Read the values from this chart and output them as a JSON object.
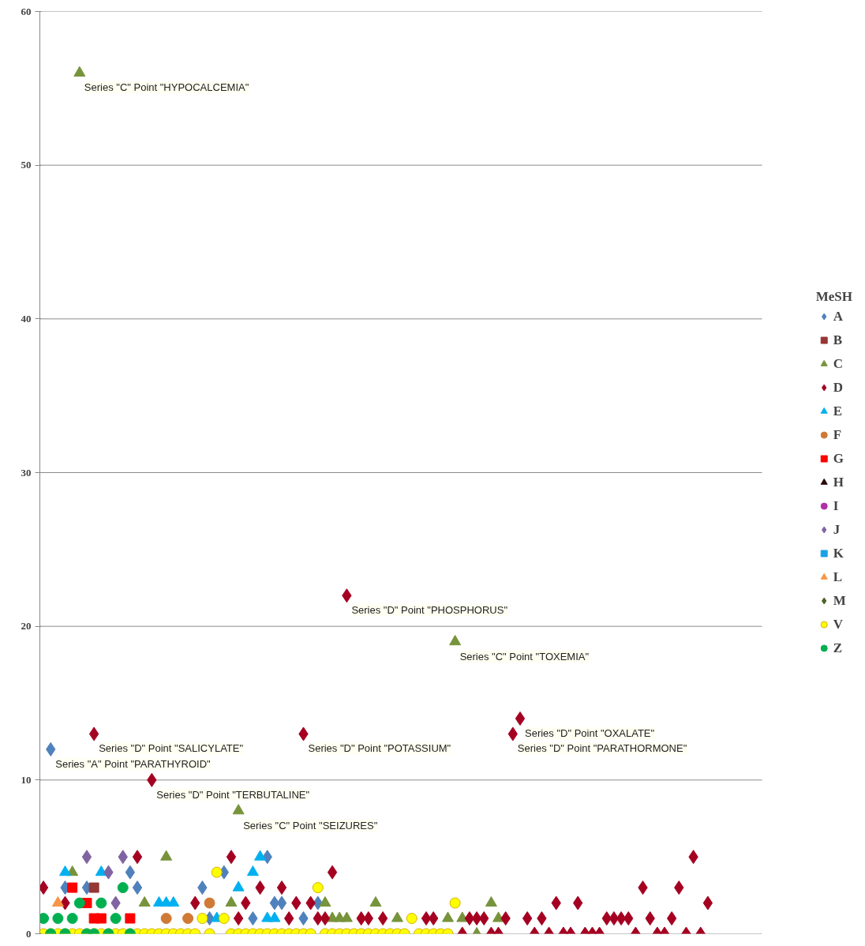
{
  "chart_data": {
    "type": "scatter",
    "legend_title": "MeSH",
    "legend": "right",
    "grid": "y",
    "tick_labels": "y",
    "ylim": [
      0,
      60
    ],
    "yticks": [
      0,
      10,
      20,
      30,
      40,
      50,
      60
    ],
    "categories": [
      null,
      null,
      null,
      null,
      null,
      null,
      null,
      null,
      null,
      null,
      null,
      null,
      null,
      null,
      null,
      null,
      null,
      null,
      null,
      null,
      null,
      null,
      null,
      null,
      null,
      null,
      null,
      null,
      null,
      null,
      null,
      null,
      null,
      null,
      null,
      null,
      null,
      null,
      null,
      null,
      null,
      null,
      null,
      null,
      null,
      null,
      null,
      null,
      null,
      null,
      null,
      null,
      null,
      null,
      null,
      null,
      null,
      null,
      null,
      null,
      null,
      null,
      null,
      null,
      null,
      null,
      null,
      null,
      null,
      null,
      null,
      null,
      null,
      null,
      null,
      null,
      null,
      null,
      null,
      null,
      null,
      null,
      null,
      null,
      null,
      null,
      null,
      null,
      null,
      null,
      null,
      null,
      null,
      null,
      null,
      null,
      null,
      null,
      null,
      null
    ],
    "series": [
      {
        "name": "A",
        "color": "#4f81bd",
        "marker": "diamond",
        "values": [
          null,
          12,
          null,
          3,
          null,
          null,
          3,
          null,
          null,
          null,
          null,
          null,
          4,
          3,
          null,
          null,
          null,
          null,
          null,
          null,
          null,
          null,
          3,
          1,
          null,
          4,
          null,
          null,
          null,
          1,
          null,
          5,
          2,
          2,
          null,
          null,
          1,
          null,
          2,
          null,
          null,
          null,
          null,
          null,
          null,
          null,
          null,
          null,
          null,
          null,
          null,
          null,
          null,
          null,
          null,
          null,
          null,
          null,
          null,
          null,
          null,
          null,
          null,
          null,
          null,
          null,
          null,
          null,
          null,
          null,
          null,
          null,
          null,
          null,
          null,
          null,
          null,
          null,
          null,
          null,
          null,
          null,
          null,
          null,
          null,
          null,
          null,
          null,
          null,
          null,
          null,
          null,
          null,
          null,
          null,
          null,
          null,
          null,
          null,
          null
        ]
      },
      {
        "name": "B",
        "color": "#953735",
        "marker": "square",
        "values": [
          null,
          null,
          null,
          null,
          null,
          null,
          null,
          3,
          null,
          null,
          null,
          null,
          null,
          null,
          null,
          null,
          null,
          null,
          null,
          null,
          null,
          null,
          null,
          null,
          null,
          null,
          null,
          null,
          null,
          null,
          null,
          null,
          null,
          null,
          null,
          null,
          null,
          null,
          null,
          null,
          null,
          null,
          null,
          null,
          null,
          null,
          null,
          null,
          null,
          null,
          null,
          null,
          null,
          null,
          null,
          null,
          null,
          null,
          null,
          null,
          null,
          null,
          null,
          null,
          null,
          null,
          null,
          null,
          null,
          null,
          null,
          null,
          null,
          null,
          null,
          null,
          null,
          null,
          null,
          null,
          null,
          null,
          null,
          null,
          null,
          null,
          null,
          null,
          null,
          null,
          null,
          null,
          null,
          null,
          null,
          null,
          null,
          null,
          null,
          null
        ]
      },
      {
        "name": "C",
        "color": "#77933c",
        "marker": "triangle",
        "values": [
          null,
          null,
          null,
          null,
          4,
          56,
          null,
          null,
          null,
          null,
          null,
          null,
          null,
          null,
          2,
          null,
          null,
          5,
          null,
          null,
          null,
          null,
          null,
          null,
          null,
          null,
          2,
          8,
          null,
          null,
          null,
          null,
          null,
          null,
          null,
          null,
          null,
          null,
          null,
          2,
          1,
          1,
          1,
          null,
          null,
          null,
          2,
          null,
          null,
          1,
          null,
          null,
          null,
          null,
          null,
          null,
          1,
          19,
          1,
          null,
          0,
          null,
          2,
          1,
          null,
          null,
          null,
          null,
          null,
          null,
          null,
          null,
          null,
          null,
          null,
          null,
          null,
          null,
          null,
          null,
          null,
          null,
          null,
          null,
          null,
          null,
          null,
          null,
          null,
          null,
          null,
          null,
          null,
          null,
          null,
          null,
          null,
          null,
          null,
          null
        ]
      },
      {
        "name": "D",
        "color": "#a50021",
        "marker": "diamond",
        "values": [
          3,
          null,
          null,
          2,
          null,
          null,
          null,
          13,
          null,
          null,
          null,
          null,
          null,
          5,
          null,
          10,
          null,
          null,
          null,
          null,
          null,
          2,
          null,
          null,
          null,
          null,
          5,
          1,
          2,
          null,
          3,
          null,
          null,
          3,
          1,
          2,
          13,
          2,
          1,
          1,
          4,
          null,
          22,
          null,
          1,
          1,
          null,
          1,
          null,
          null,
          null,
          null,
          null,
          1,
          1,
          null,
          null,
          null,
          0,
          1,
          1,
          1,
          0,
          0,
          1,
          13,
          14,
          1,
          0,
          1,
          0,
          2,
          0,
          0,
          2,
          0,
          0,
          0,
          1,
          1,
          1,
          1,
          0,
          3,
          1,
          0,
          0,
          1,
          3,
          0,
          5,
          0,
          2,
          null,
          null,
          null,
          null,
          null,
          null,
          null
        ]
      },
      {
        "name": "E",
        "color": "#00b0f0",
        "marker": "triangle",
        "values": [
          null,
          null,
          null,
          4,
          null,
          null,
          null,
          null,
          4,
          null,
          null,
          null,
          null,
          null,
          null,
          null,
          2,
          2,
          2,
          null,
          null,
          null,
          null,
          null,
          1,
          null,
          null,
          3,
          null,
          4,
          5,
          1,
          1,
          null,
          null,
          null,
          null,
          null,
          null,
          null,
          null,
          null,
          null,
          null,
          null,
          null,
          null,
          null,
          null,
          null,
          null,
          null,
          null,
          null,
          null,
          null,
          null,
          null,
          null,
          null,
          null,
          null,
          null,
          null,
          null,
          null,
          null,
          null,
          null,
          null,
          null,
          null,
          null,
          null,
          null,
          null,
          null,
          null,
          null,
          null,
          null,
          null,
          null,
          null,
          null,
          null,
          null,
          null,
          null,
          null,
          null,
          null,
          null,
          null,
          null,
          null,
          null,
          null,
          null,
          null
        ]
      },
      {
        "name": "F",
        "color": "#d07a36",
        "marker": "circle",
        "values": [
          null,
          null,
          null,
          null,
          null,
          null,
          null,
          null,
          null,
          null,
          null,
          null,
          null,
          null,
          null,
          null,
          null,
          1,
          null,
          null,
          1,
          null,
          null,
          2,
          null,
          null,
          null,
          null,
          null,
          null,
          null,
          null,
          null,
          null,
          null,
          null,
          null,
          null,
          null,
          null,
          null,
          null,
          null,
          null,
          null,
          null,
          null,
          null,
          null,
          null,
          null,
          null,
          null,
          null,
          null,
          null,
          null,
          null,
          null,
          null,
          null,
          null,
          null,
          null,
          null,
          null,
          null,
          null,
          null,
          null,
          null,
          null,
          null,
          null,
          null,
          null,
          null,
          null,
          null,
          null,
          null,
          null,
          null,
          null,
          null,
          null,
          null,
          null,
          null,
          null,
          null,
          null,
          null,
          null,
          null,
          null,
          null,
          null,
          null,
          null
        ]
      },
      {
        "name": "G",
        "color": "#ff0000",
        "marker": "square",
        "values": [
          null,
          null,
          null,
          null,
          3,
          null,
          2,
          1,
          1,
          null,
          null,
          null,
          1,
          null,
          null,
          null,
          null,
          null,
          null,
          null,
          null,
          null,
          null,
          null,
          null,
          null,
          null,
          null,
          null,
          null,
          null,
          null,
          null,
          null,
          null,
          null,
          null,
          null,
          null,
          null,
          null,
          null,
          null,
          null,
          null,
          null,
          null,
          null,
          null,
          null,
          null,
          null,
          null,
          null,
          null,
          null,
          null,
          null,
          null,
          null,
          null,
          null,
          null,
          null,
          null,
          null,
          null,
          null,
          null,
          null,
          null,
          null,
          null,
          null,
          null,
          null,
          null,
          null,
          null,
          null,
          null,
          null,
          null,
          null,
          null,
          null,
          null,
          null,
          null,
          null,
          null,
          null,
          null,
          null,
          null,
          null,
          null,
          null,
          null,
          null
        ]
      },
      {
        "name": "H",
        "color": "#2b0a0a",
        "marker": "triangle",
        "values": [
          null,
          null,
          null,
          null,
          null,
          null,
          null,
          null,
          null,
          null,
          null,
          null,
          null,
          null,
          null,
          null,
          null,
          null,
          null,
          null,
          null,
          null,
          null,
          null,
          null,
          null,
          null,
          null,
          null,
          null,
          null,
          null,
          null,
          null,
          null,
          null,
          null,
          null,
          null,
          null,
          null,
          null,
          null,
          null,
          null,
          null,
          null,
          null,
          null,
          null,
          null,
          null,
          null,
          null,
          null,
          null,
          null,
          null,
          null,
          null,
          null,
          null,
          null,
          null,
          null,
          null,
          null,
          null,
          null,
          null,
          null,
          null,
          null,
          null,
          null,
          null,
          null,
          null,
          null,
          null,
          null,
          null,
          null,
          null,
          null,
          null,
          null,
          null,
          null,
          null,
          null,
          null,
          null,
          null,
          null,
          null,
          null,
          null,
          null,
          null
        ]
      },
      {
        "name": "I",
        "color": "#b030a8",
        "marker": "circle",
        "values": [
          null,
          null,
          null,
          null,
          null,
          null,
          null,
          null,
          null,
          null,
          null,
          null,
          null,
          null,
          null,
          null,
          null,
          null,
          null,
          null,
          null,
          null,
          null,
          null,
          null,
          null,
          null,
          null,
          null,
          null,
          null,
          null,
          null,
          null,
          null,
          null,
          null,
          null,
          null,
          null,
          null,
          null,
          null,
          null,
          null,
          null,
          null,
          null,
          null,
          null,
          null,
          null,
          null,
          null,
          null,
          null,
          null,
          null,
          null,
          null,
          null,
          null,
          null,
          null,
          null,
          null,
          null,
          null,
          null,
          null,
          null,
          null,
          null,
          null,
          null,
          null,
          null,
          null,
          null,
          null,
          null,
          null,
          null,
          null,
          null,
          null,
          null,
          null,
          null,
          null,
          null,
          null,
          null,
          null,
          null,
          null,
          null,
          null,
          null,
          null
        ]
      },
      {
        "name": "J",
        "color": "#8064a2",
        "marker": "diamond",
        "values": [
          null,
          null,
          null,
          null,
          null,
          null,
          5,
          null,
          null,
          4,
          2,
          5,
          null,
          null,
          null,
          null,
          null,
          null,
          null,
          null,
          null,
          null,
          null,
          null,
          null,
          null,
          null,
          null,
          null,
          null,
          null,
          null,
          null,
          null,
          null,
          null,
          null,
          null,
          null,
          null,
          null,
          null,
          null,
          null,
          null,
          null,
          null,
          null,
          null,
          null,
          null,
          null,
          null,
          null,
          null,
          null,
          null,
          null,
          null,
          null,
          null,
          null,
          null,
          null,
          null,
          null,
          null,
          null,
          null,
          null,
          null,
          null,
          null,
          null,
          null,
          null,
          null,
          null,
          null,
          null,
          null,
          null,
          null,
          null,
          null,
          null,
          null,
          null,
          null,
          null,
          null,
          null,
          null,
          null,
          null,
          null,
          null,
          null,
          null,
          null
        ]
      },
      {
        "name": "K",
        "color": "#1aa1e6",
        "marker": "square",
        "values": [
          null,
          null,
          null,
          null,
          null,
          null,
          null,
          null,
          null,
          null,
          null,
          null,
          null,
          null,
          null,
          null,
          null,
          null,
          null,
          null,
          null,
          null,
          null,
          null,
          null,
          null,
          null,
          null,
          null,
          null,
          null,
          null,
          null,
          null,
          null,
          null,
          null,
          null,
          null,
          null,
          null,
          null,
          null,
          null,
          null,
          null,
          null,
          null,
          null,
          null,
          null,
          null,
          null,
          null,
          null,
          null,
          null,
          null,
          null,
          null,
          null,
          null,
          null,
          null,
          null,
          null,
          null,
          null,
          null,
          null,
          null,
          null,
          null,
          null,
          null,
          null,
          null,
          null,
          null,
          null,
          null,
          null,
          null,
          null,
          null,
          null,
          null,
          null,
          null,
          null,
          null,
          null,
          null,
          null,
          null,
          null,
          null,
          null,
          null,
          null
        ]
      },
      {
        "name": "L",
        "color": "#f79646",
        "marker": "triangle",
        "values": [
          null,
          null,
          2,
          null,
          null,
          null,
          null,
          null,
          null,
          null,
          null,
          null,
          null,
          null,
          null,
          null,
          null,
          null,
          null,
          null,
          null,
          null,
          null,
          null,
          null,
          null,
          null,
          null,
          null,
          null,
          null,
          null,
          null,
          null,
          null,
          null,
          null,
          null,
          null,
          null,
          null,
          null,
          null,
          null,
          null,
          null,
          null,
          null,
          null,
          null,
          null,
          null,
          null,
          null,
          null,
          null,
          null,
          null,
          null,
          null,
          null,
          null,
          null,
          null,
          null,
          null,
          null,
          null,
          null,
          null,
          null,
          null,
          null,
          null,
          null,
          null,
          null,
          null,
          null,
          null,
          null,
          null,
          null,
          null,
          null,
          null,
          null,
          null,
          null,
          null,
          null,
          null,
          null,
          null,
          null,
          null,
          null,
          null,
          null,
          null
        ]
      },
      {
        "name": "M",
        "color": "#4f6228",
        "marker": "diamond",
        "values": [
          null,
          null,
          null,
          null,
          null,
          null,
          null,
          null,
          null,
          null,
          null,
          null,
          null,
          null,
          null,
          null,
          null,
          null,
          null,
          null,
          null,
          null,
          null,
          null,
          null,
          null,
          null,
          null,
          null,
          null,
          null,
          null,
          null,
          null,
          null,
          null,
          null,
          null,
          null,
          null,
          null,
          null,
          null,
          null,
          null,
          null,
          null,
          null,
          null,
          null,
          null,
          null,
          null,
          null,
          null,
          null,
          null,
          null,
          null,
          null,
          null,
          null,
          null,
          null,
          null,
          null,
          null,
          null,
          null,
          null,
          null,
          null,
          null,
          null,
          null,
          null,
          null,
          null,
          null,
          null,
          null,
          null,
          null,
          null,
          null,
          null,
          null,
          null,
          null,
          null,
          null,
          null,
          null,
          null,
          null,
          null,
          null,
          null,
          null,
          null
        ]
      },
      {
        "name": "V",
        "color": "#ffff00",
        "marker": "circle",
        "values": [
          0,
          0,
          0,
          0,
          0,
          0,
          0,
          0,
          0,
          0,
          0,
          0,
          0,
          0,
          0,
          0,
          0,
          0,
          0,
          0,
          0,
          0,
          1,
          0,
          4,
          1,
          0,
          0,
          0,
          0,
          0,
          0,
          0,
          0,
          0,
          0,
          0,
          0,
          3,
          0,
          0,
          0,
          0,
          0,
          0,
          0,
          0,
          0,
          0,
          0,
          0,
          1,
          0,
          0,
          0,
          0,
          0,
          2,
          null,
          null,
          null,
          null,
          null,
          null,
          null,
          null,
          null,
          null,
          null,
          null,
          null,
          null,
          null,
          null,
          null,
          null,
          null,
          null,
          null,
          null,
          null,
          null,
          null,
          null,
          null,
          null,
          null,
          null,
          null,
          null,
          null,
          null,
          null,
          null,
          null,
          null,
          null,
          null,
          null,
          null
        ]
      },
      {
        "name": "Z",
        "color": "#00b050",
        "marker": "circle",
        "values": [
          1,
          0,
          1,
          0,
          1,
          2,
          0,
          0,
          2,
          0,
          1,
          3,
          0,
          null,
          null,
          null,
          null,
          null,
          null,
          null,
          null,
          null,
          null,
          null,
          null,
          null,
          null,
          null,
          null,
          null,
          null,
          null,
          null,
          null,
          null,
          null,
          null,
          null,
          null,
          null,
          null,
          null,
          null,
          null,
          null,
          null,
          null,
          null,
          null,
          null,
          null,
          null,
          null,
          null,
          null,
          null,
          null,
          null,
          null,
          null,
          null,
          null,
          null,
          null,
          null,
          null,
          null,
          null,
          null,
          null,
          null,
          null,
          null,
          null,
          null,
          null,
          null,
          null,
          null,
          null,
          null,
          null,
          null,
          null,
          null,
          null,
          null,
          null,
          null,
          null,
          null,
          null,
          null,
          null,
          null,
          null,
          null,
          null,
          null,
          null
        ]
      }
    ],
    "annotations": [
      "Series \"C\" Point \"HYPOCALCEMIA\"",
      "Series \"D\" Point \"PHOSPHORUS\"",
      "Series \"C\" Point \"TOXEMIA\"",
      "Series \"D\" Point \"OXALATE\"",
      "Series \"D\" Point \"SALICYLATE\"",
      "Series \"D\" Point \"POTASSIUM\"",
      "Series \"D\" Point \"PARATHORMONE\"",
      "Series \"A\" Point \"PARATHYROID\"",
      "Series \"D\" Point \"TERBUTALINE\"",
      "Series \"C\" Point \"SEIZURES\""
    ]
  }
}
